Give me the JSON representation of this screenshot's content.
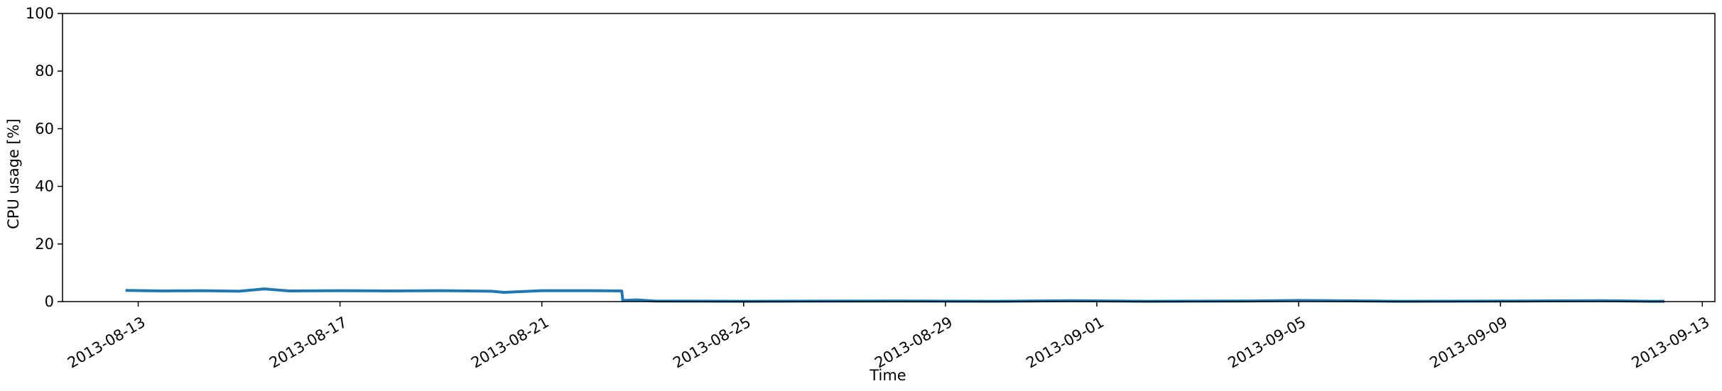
{
  "chart_data": {
    "type": "line",
    "title": "",
    "xlabel": "Time",
    "ylabel": "CPU usage [%]",
    "ylim": [
      0,
      100
    ],
    "xlim": [
      "2013-08-11T12:00",
      "2013-09-13T06:00"
    ],
    "grid": false,
    "legend": "none",
    "x_tick_labels": [
      "2013-08-13",
      "2013-08-17",
      "2013-08-21",
      "2013-08-25",
      "2013-08-29",
      "2013-09-01",
      "2013-09-05",
      "2013-09-09",
      "2013-09-13"
    ],
    "y_tick_labels": [
      "0",
      "20",
      "40",
      "60",
      "80",
      "100"
    ],
    "series": [
      {
        "color": "#1f77b4",
        "points": [
          [
            "2013-08-12T18:00",
            3.9
          ],
          [
            "2013-08-13T12:00",
            3.7
          ],
          [
            "2013-08-14T06:00",
            3.8
          ],
          [
            "2013-08-15T00:00",
            3.6
          ],
          [
            "2013-08-15T12:00",
            4.4
          ],
          [
            "2013-08-16T00:00",
            3.7
          ],
          [
            "2013-08-17T00:00",
            3.8
          ],
          [
            "2013-08-18T00:00",
            3.7
          ],
          [
            "2013-08-19T00:00",
            3.8
          ],
          [
            "2013-08-20T00:00",
            3.6
          ],
          [
            "2013-08-20T06:00",
            3.2
          ],
          [
            "2013-08-21T00:00",
            3.8
          ],
          [
            "2013-08-22T00:00",
            3.8
          ],
          [
            "2013-08-22T14:00",
            3.7
          ],
          [
            "2013-08-22T14:30",
            0.4
          ],
          [
            "2013-08-22T21:00",
            0.6
          ],
          [
            "2013-08-23T06:00",
            0.2
          ],
          [
            "2013-08-25T00:00",
            0.1
          ],
          [
            "2013-08-28T00:00",
            0.2
          ],
          [
            "2013-08-30T00:00",
            0.1
          ],
          [
            "2013-08-31T12:00",
            0.3
          ],
          [
            "2013-09-02T00:00",
            0.1
          ],
          [
            "2013-09-04T00:00",
            0.2
          ],
          [
            "2013-09-05T00:00",
            0.4
          ],
          [
            "2013-09-07T00:00",
            0.1
          ],
          [
            "2013-09-09T12:00",
            0.2
          ],
          [
            "2013-09-11T00:00",
            0.3
          ],
          [
            "2013-09-12T00:00",
            0.1
          ],
          [
            "2013-09-12T06:00",
            0.1
          ]
        ]
      }
    ]
  }
}
